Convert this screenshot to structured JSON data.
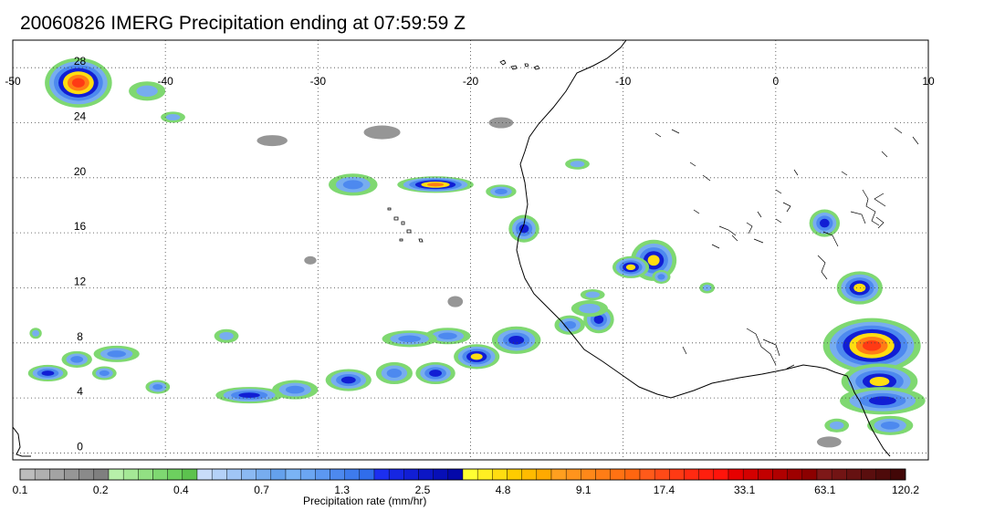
{
  "title": "20060826 IMERG Precipitation ending at 07:59:59 Z",
  "map": {
    "lon_ticks": [
      "-50",
      "-40",
      "-30",
      "-20",
      "-10",
      "0",
      "10"
    ],
    "lat_ticks": [
      "28",
      "24",
      "20",
      "16",
      "12",
      "8",
      "4",
      "0"
    ],
    "lon_range": [
      -50,
      10
    ],
    "lat_range": [
      -0.5,
      30
    ],
    "grid": "dotted",
    "coastline_color": "#000000"
  },
  "precip_cells": [
    {
      "lon": -45.7,
      "lat": 26.9,
      "rx": 2.2,
      "ry": 1.8,
      "peak": 6
    },
    {
      "lon": -27.7,
      "lat": 19.5,
      "rx": 1.6,
      "ry": 0.8,
      "peak": 2
    },
    {
      "lon": -22.3,
      "lat": 19.5,
      "rx": 2.5,
      "ry": 0.6,
      "peak": 5
    },
    {
      "lon": -18.0,
      "lat": 19.0,
      "rx": 1.0,
      "ry": 0.5,
      "peak": 2
    },
    {
      "lon": -16.5,
      "lat": 16.3,
      "rx": 1.0,
      "ry": 1.0,
      "peak": 3
    },
    {
      "lon": -8.0,
      "lat": 14.0,
      "rx": 1.5,
      "ry": 1.5,
      "peak": 4
    },
    {
      "lon": -9.5,
      "lat": 13.5,
      "rx": 1.2,
      "ry": 0.8,
      "peak": 4
    },
    {
      "lon": 3.2,
      "lat": 16.7,
      "rx": 1.0,
      "ry": 1.0,
      "peak": 3
    },
    {
      "lon": 5.5,
      "lat": 12.0,
      "rx": 1.5,
      "ry": 1.2,
      "peak": 4
    },
    {
      "lon": 6.3,
      "lat": 7.8,
      "rx": 3.2,
      "ry": 2.0,
      "peak": 6
    },
    {
      "lon": 6.8,
      "lat": 5.2,
      "rx": 2.5,
      "ry": 1.3,
      "peak": 4
    },
    {
      "lon": 7.0,
      "lat": 3.8,
      "rx": 2.8,
      "ry": 1.0,
      "peak": 3
    },
    {
      "lon": 7.5,
      "lat": 2.0,
      "rx": 1.5,
      "ry": 0.7,
      "peak": 2
    },
    {
      "lon": -11.6,
      "lat": 9.7,
      "rx": 1.0,
      "ry": 1.0,
      "peak": 3
    },
    {
      "lon": -13.5,
      "lat": 9.3,
      "rx": 1.0,
      "ry": 0.7,
      "peak": 2
    },
    {
      "lon": -17.0,
      "lat": 8.2,
      "rx": 1.6,
      "ry": 1.0,
      "peak": 3
    },
    {
      "lon": -19.6,
      "lat": 7.0,
      "rx": 1.5,
      "ry": 0.9,
      "peak": 4
    },
    {
      "lon": -21.5,
      "lat": 8.5,
      "rx": 1.5,
      "ry": 0.6,
      "peak": 2
    },
    {
      "lon": -24.0,
      "lat": 8.3,
      "rx": 1.8,
      "ry": 0.6,
      "peak": 2
    },
    {
      "lon": -22.3,
      "lat": 5.8,
      "rx": 1.3,
      "ry": 0.8,
      "peak": 3
    },
    {
      "lon": -25.0,
      "lat": 5.8,
      "rx": 1.2,
      "ry": 0.8,
      "peak": 2
    },
    {
      "lon": -28.0,
      "lat": 5.3,
      "rx": 1.5,
      "ry": 0.8,
      "peak": 3
    },
    {
      "lon": -31.5,
      "lat": 4.6,
      "rx": 1.5,
      "ry": 0.7,
      "peak": 2
    },
    {
      "lon": -34.5,
      "lat": 4.2,
      "rx": 2.2,
      "ry": 0.6,
      "peak": 3
    },
    {
      "lon": -45.8,
      "lat": 6.8,
      "rx": 1.0,
      "ry": 0.6,
      "peak": 2
    },
    {
      "lon": -43.2,
      "lat": 7.2,
      "rx": 1.5,
      "ry": 0.6,
      "peak": 2
    },
    {
      "lon": -47.7,
      "lat": 5.8,
      "rx": 1.3,
      "ry": 0.6,
      "peak": 3
    },
    {
      "lon": -44.0,
      "lat": 5.8,
      "rx": 0.8,
      "ry": 0.5,
      "peak": 2
    },
    {
      "lon": -40.5,
      "lat": 4.8,
      "rx": 0.8,
      "ry": 0.5,
      "peak": 2
    },
    {
      "lon": -41.2,
      "lat": 26.3,
      "rx": 1.2,
      "ry": 0.7,
      "peak": 1
    },
    {
      "lon": -39.5,
      "lat": 24.4,
      "rx": 0.8,
      "ry": 0.4,
      "peak": 1
    },
    {
      "lon": -33.0,
      "lat": 22.7,
      "rx": 1.0,
      "ry": 0.4,
      "peak": 0
    },
    {
      "lon": -25.8,
      "lat": 23.3,
      "rx": 1.2,
      "ry": 0.5,
      "peak": 0
    },
    {
      "lon": -18.0,
      "lat": 24.0,
      "rx": 0.8,
      "ry": 0.4,
      "peak": 0
    },
    {
      "lon": -12.0,
      "lat": 11.5,
      "rx": 0.8,
      "ry": 0.4,
      "peak": 1
    },
    {
      "lon": -7.5,
      "lat": 12.8,
      "rx": 0.6,
      "ry": 0.5,
      "peak": 2
    },
    {
      "lon": -4.5,
      "lat": 12.0,
      "rx": 0.5,
      "ry": 0.4,
      "peak": 1
    },
    {
      "lon": -13.0,
      "lat": 21.0,
      "rx": 0.8,
      "ry": 0.4,
      "peak": 1
    },
    {
      "lon": 4.0,
      "lat": 2.0,
      "rx": 0.8,
      "ry": 0.5,
      "peak": 1
    },
    {
      "lon": 3.5,
      "lat": 0.8,
      "rx": 0.8,
      "ry": 0.4,
      "peak": 0
    },
    {
      "lon": -12.2,
      "lat": 10.5,
      "rx": 1.2,
      "ry": 0.6,
      "peak": 1
    },
    {
      "lon": -21.0,
      "lat": 11.0,
      "rx": 0.5,
      "ry": 0.4,
      "peak": 0
    },
    {
      "lon": -30.5,
      "lat": 14.0,
      "rx": 0.4,
      "ry": 0.3,
      "peak": 0
    },
    {
      "lon": -36.0,
      "lat": 8.5,
      "rx": 0.8,
      "ry": 0.5,
      "peak": 1
    },
    {
      "lon": -48.5,
      "lat": 8.7,
      "rx": 0.4,
      "ry": 0.4,
      "peak": 1
    }
  ],
  "colorbar": {
    "title": "Precipitation rate (mm/hr)",
    "labels": [
      "0.1",
      "0.2",
      "0.4",
      "0.7",
      "1.3",
      "2.5",
      "4.8",
      "9.1",
      "17.4",
      "33.1",
      "63.1",
      "120.2"
    ],
    "groups": [
      {
        "steps": [
          "#bdbdbd",
          "#b0b0b0",
          "#a3a3a3",
          "#969696",
          "#8a8a8a",
          "#7f7f7f"
        ]
      },
      {
        "steps": [
          "#b7f0a9",
          "#a5e896",
          "#92e083",
          "#7fd871",
          "#6dd05f",
          "#5cc24e"
        ]
      },
      {
        "steps": [
          "#c8dcfa",
          "#b4d1f8",
          "#a0c5f5",
          "#8bb9f2",
          "#77adef",
          "#64a1ec"
        ]
      },
      {
        "steps": [
          "#7ab4f5",
          "#6ba6f3",
          "#5c98f1",
          "#4d89ef",
          "#3e7bed",
          "#306deb"
        ]
      },
      {
        "steps": [
          "#1c2ff0",
          "#1626e2",
          "#111ed4",
          "#0c16c5",
          "#070fb7",
          "#0308a9"
        ]
      },
      {
        "steps": [
          "#ffff33",
          "#ffee22",
          "#ffdd11",
          "#ffcc00",
          "#ffbb00",
          "#ffaa00"
        ]
      },
      {
        "steps": [
          "#ff9f1f",
          "#ff941c",
          "#ff8819",
          "#ff7d16",
          "#ff7213",
          "#ff6610"
        ]
      },
      {
        "steps": [
          "#ff5a1a",
          "#ff4a17",
          "#ff3a14",
          "#ff2a11",
          "#ff1f0e",
          "#ff140b"
        ]
      },
      {
        "steps": [
          "#e60000",
          "#d40000",
          "#c20000",
          "#b00000",
          "#9e0000",
          "#8c0000"
        ]
      },
      {
        "steps": [
          "#7e1818",
          "#721414",
          "#661111",
          "#5a0e0e",
          "#4e0a0a",
          "#420707"
        ]
      }
    ]
  }
}
